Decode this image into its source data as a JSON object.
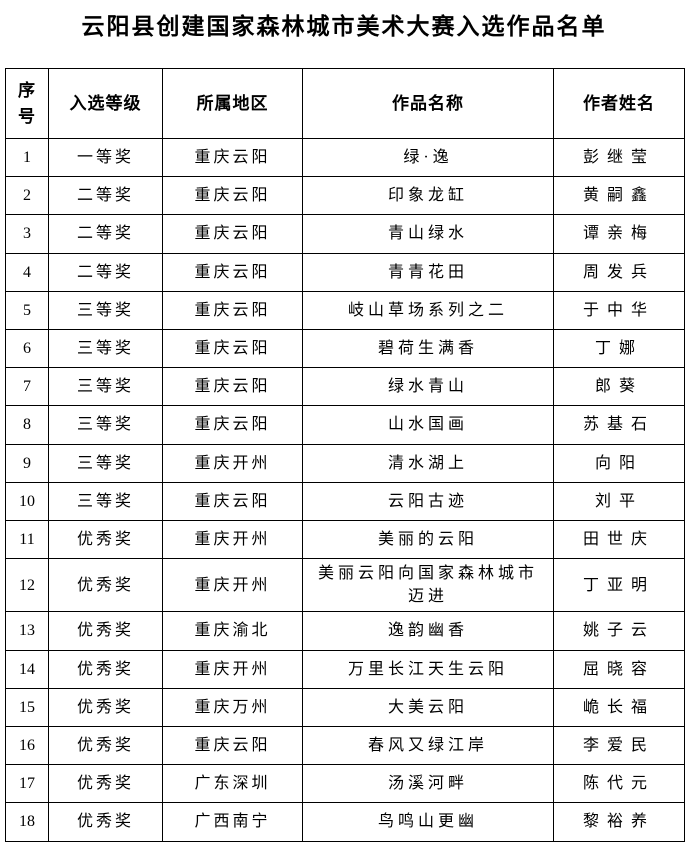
{
  "title": "云阳县创建国家森林城市美术大赛入选作品名单",
  "table": {
    "headers": [
      "序号",
      "入选等级",
      "所属地区",
      "作品名称",
      "作者姓名"
    ],
    "rows": [
      {
        "no": "1",
        "level": "一等奖",
        "region": "重庆云阳",
        "work": "绿·逸",
        "author": "彭继莹"
      },
      {
        "no": "2",
        "level": "二等奖",
        "region": "重庆云阳",
        "work": "印象龙缸",
        "author": "黄嗣鑫"
      },
      {
        "no": "3",
        "level": "二等奖",
        "region": "重庆云阳",
        "work": "青山绿水",
        "author": "谭亲梅"
      },
      {
        "no": "4",
        "level": "二等奖",
        "region": "重庆云阳",
        "work": "青青花田",
        "author": "周发兵"
      },
      {
        "no": "5",
        "level": "三等奖",
        "region": "重庆云阳",
        "work": "岐山草场系列之二",
        "author": "于中华"
      },
      {
        "no": "6",
        "level": "三等奖",
        "region": "重庆云阳",
        "work": "碧荷生满香",
        "author": "丁娜"
      },
      {
        "no": "7",
        "level": "三等奖",
        "region": "重庆云阳",
        "work": "绿水青山",
        "author": "郎葵"
      },
      {
        "no": "8",
        "level": "三等奖",
        "region": "重庆云阳",
        "work": "山水国画",
        "author": "苏基石"
      },
      {
        "no": "9",
        "level": "三等奖",
        "region": "重庆开州",
        "work": "清水湖上",
        "author": "向阳"
      },
      {
        "no": "10",
        "level": "三等奖",
        "region": "重庆云阳",
        "work": "云阳古迹",
        "author": "刘平"
      },
      {
        "no": "11",
        "level": "优秀奖",
        "region": "重庆开州",
        "work": "美丽的云阳",
        "author": "田世庆"
      },
      {
        "no": "12",
        "level": "优秀奖",
        "region": "重庆开州",
        "work": "美丽云阳向国家森林城市\n迈进",
        "author": "丁亚明"
      },
      {
        "no": "13",
        "level": "优秀奖",
        "region": "重庆渝北",
        "work": "逸韵幽香",
        "author": "姚子云"
      },
      {
        "no": "14",
        "level": "优秀奖",
        "region": "重庆开州",
        "work": "万里长江天生云阳",
        "author": "屈晓容"
      },
      {
        "no": "15",
        "level": "优秀奖",
        "region": "重庆万州",
        "work": "大美云阳",
        "author": "峗长福"
      },
      {
        "no": "16",
        "level": "优秀奖",
        "region": "重庆云阳",
        "work": "春风又绿江岸",
        "author": "李爱民"
      },
      {
        "no": "17",
        "level": "优秀奖",
        "region": "广东深圳",
        "work": "汤溪河畔",
        "author": "陈代元"
      },
      {
        "no": "18",
        "level": "优秀奖",
        "region": "广西南宁",
        "work": "鸟鸣山更幽",
        "author": "黎裕养"
      }
    ]
  }
}
